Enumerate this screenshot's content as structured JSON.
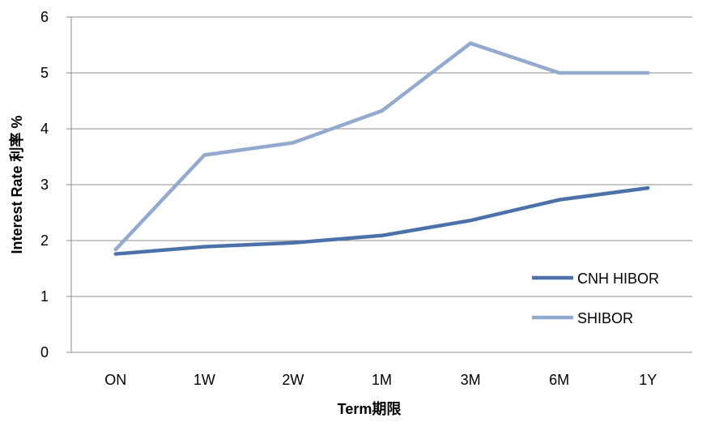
{
  "chart_data": {
    "type": "line",
    "categories": [
      "ON",
      "1W",
      "2W",
      "1M",
      "3M",
      "6M",
      "1Y"
    ],
    "series": [
      {
        "name": "CNH HIBOR",
        "values": [
          1.76,
          1.89,
          1.96,
          2.09,
          2.36,
          2.73,
          2.94
        ],
        "color": "#4a72a8"
      },
      {
        "name": "SHIBOR",
        "values": [
          1.84,
          3.53,
          3.75,
          4.32,
          5.53,
          5.0,
          5.0
        ],
        "color": "#93a9cf"
      }
    ],
    "xlabel": "Term期限",
    "ylabel": "Interest Rate 利率 %",
    "ylim": [
      0,
      6
    ],
    "yticks": [
      "0",
      "1",
      "2",
      "3",
      "4",
      "5",
      "6"
    ],
    "grid": true,
    "legend_position": "bottom-right"
  }
}
